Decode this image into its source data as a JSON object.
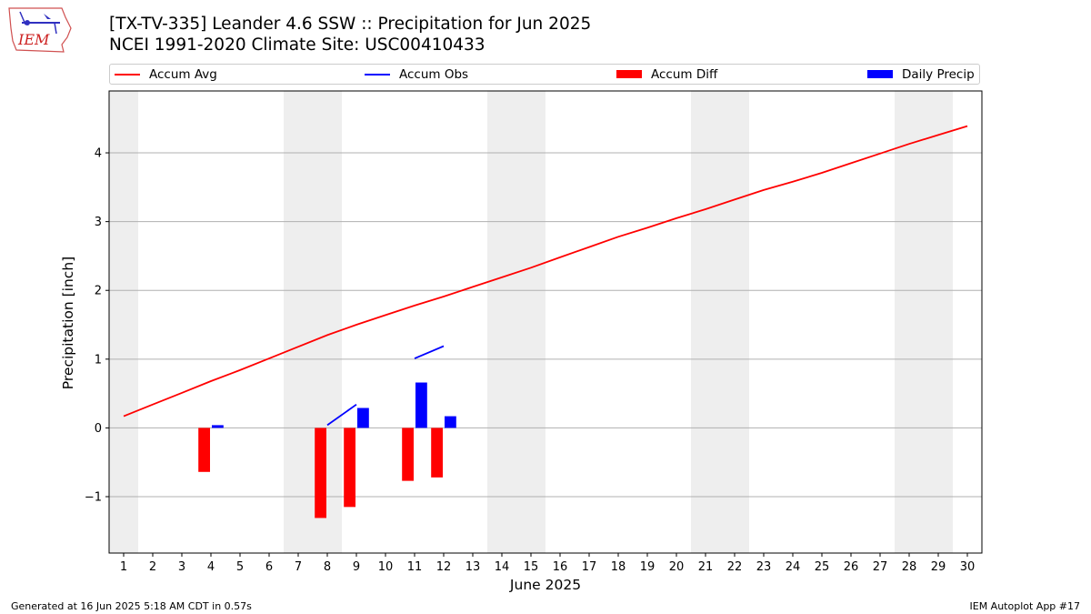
{
  "header": {
    "title_line1": "[TX-TV-335] Leander 4.6 SSW :: Precipitation for Jun 2025",
    "title_line2": "NCEI 1991-2020 Climate Site: USC00410433",
    "logo_text": "IEM"
  },
  "legend": {
    "position": "top, above plot, horizontal",
    "items": [
      {
        "label": "Accum Avg",
        "color": "#ff0000",
        "kind": "line"
      },
      {
        "label": "Accum Obs",
        "color": "#0000ff",
        "kind": "line"
      },
      {
        "label": "Accum Diff",
        "color": "#ff0000",
        "kind": "bar"
      },
      {
        "label": "Daily Precip",
        "color": "#0000ff",
        "kind": "bar"
      }
    ]
  },
  "footer": {
    "left": "Generated at 16 Jun 2025 5:18 AM CDT in 0.57s",
    "right": "IEM Autoplot App #17"
  },
  "chart_data": {
    "type": "bar",
    "xlabel": "June 2025",
    "ylabel": "Precipitation [inch]",
    "xlim": [
      0.5,
      30.5
    ],
    "ylim": [
      -1.82,
      4.9
    ],
    "grid": "horizontal",
    "x": [
      1,
      2,
      3,
      4,
      5,
      6,
      7,
      8,
      9,
      10,
      11,
      12,
      13,
      14,
      15,
      16,
      17,
      18,
      19,
      20,
      21,
      22,
      23,
      24,
      25,
      26,
      27,
      28,
      29,
      30
    ],
    "x_tick_labels": [
      "1",
      "2",
      "3",
      "4",
      "5",
      "6",
      "7",
      "8",
      "9",
      "10",
      "11",
      "12",
      "13",
      "14",
      "15",
      "16",
      "17",
      "18",
      "19",
      "20",
      "21",
      "22",
      "23",
      "24",
      "25",
      "26",
      "27",
      "28",
      "29",
      "30"
    ],
    "y_ticks": [
      -1,
      0,
      1,
      2,
      3,
      4
    ],
    "y_tick_labels": [
      "−1",
      "0",
      "1",
      "2",
      "3",
      "4"
    ],
    "weekend_bands": [
      [
        0.5,
        1.5
      ],
      [
        6.5,
        8.5
      ],
      [
        13.5,
        15.5
      ],
      [
        20.5,
        22.5
      ],
      [
        27.5,
        29.5
      ]
    ],
    "band_color": "#eeeeee",
    "series": [
      {
        "name": "Accum Avg",
        "kind": "line",
        "color": "#ff0000",
        "x": [
          1,
          2,
          3,
          4,
          5,
          6,
          7,
          8,
          9,
          10,
          11,
          12,
          13,
          14,
          15,
          16,
          17,
          18,
          19,
          20,
          21,
          22,
          23,
          24,
          25,
          26,
          27,
          28,
          29,
          30
        ],
        "values": [
          0.17,
          0.34,
          0.51,
          0.68,
          0.84,
          1.01,
          1.18,
          1.35,
          1.5,
          1.64,
          1.78,
          1.91,
          2.05,
          2.19,
          2.33,
          2.48,
          2.63,
          2.78,
          2.91,
          3.05,
          3.18,
          3.32,
          3.46,
          3.58,
          3.71,
          3.85,
          3.99,
          4.13,
          4.26,
          4.39
        ]
      },
      {
        "name": "Accum Obs",
        "kind": "line",
        "color": "#0000ff",
        "segments": [
          {
            "x": [
              8,
              9
            ],
            "values": [
              0.04,
              0.34
            ]
          },
          {
            "x": [
              11,
              12
            ],
            "values": [
              1.01,
              1.19
            ]
          }
        ]
      },
      {
        "name": "Accum Diff",
        "kind": "bar",
        "color": "#ff0000",
        "x": [
          4,
          8,
          9,
          11,
          12
        ],
        "values": [
          -0.64,
          -1.31,
          -1.15,
          -0.77,
          -0.72
        ]
      },
      {
        "name": "Daily Precip",
        "kind": "bar",
        "color": "#0000ff",
        "x": [
          4,
          9,
          11,
          12
        ],
        "values": [
          0.04,
          0.29,
          0.66,
          0.17
        ]
      }
    ]
  }
}
